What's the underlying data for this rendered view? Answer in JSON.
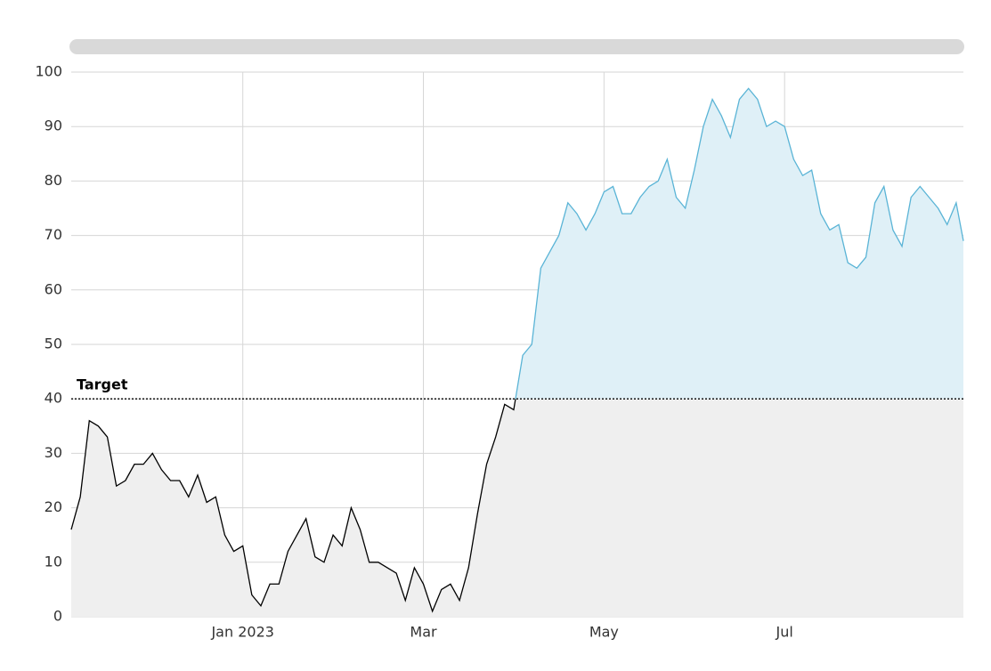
{
  "chart_data": {
    "type": "line",
    "x": [
      -0.9,
      -0.8,
      -0.7,
      -0.6,
      -0.5,
      -0.4,
      -0.3,
      -0.2,
      -0.1,
      0.0,
      0.1,
      0.2,
      0.3,
      0.4,
      0.5,
      0.6,
      0.7,
      0.8,
      0.9,
      1.0,
      1.1,
      1.2,
      1.3,
      1.4,
      1.5,
      1.6,
      1.7,
      1.8,
      1.9,
      2.0,
      2.1,
      2.2,
      2.3,
      2.4,
      2.5,
      2.6,
      2.7,
      2.8,
      2.9,
      3.0,
      3.1,
      3.2,
      3.3,
      3.4,
      3.5,
      3.6,
      3.7,
      3.8,
      3.9,
      4.0,
      4.1,
      4.2,
      4.3,
      4.4,
      4.5,
      4.6,
      4.7,
      4.8,
      4.9,
      5.0,
      5.1,
      5.2,
      5.3,
      5.4,
      5.5,
      5.6,
      5.7,
      5.8,
      5.9,
      6.0,
      6.1,
      6.2,
      6.3,
      6.4,
      6.5,
      6.6,
      6.7,
      6.8,
      6.9,
      7.0,
      7.1,
      7.2,
      7.3,
      7.4,
      7.5,
      7.6,
      7.7,
      7.8,
      7.9,
      8.0,
      8.1,
      8.2,
      8.3,
      8.4,
      8.5,
      8.6,
      8.7,
      8.8,
      8.9,
      8.98
    ],
    "values": [
      16,
      22,
      36,
      35,
      33,
      24,
      25,
      28,
      28,
      30,
      27,
      25,
      25,
      22,
      26,
      21,
      22,
      15,
      12,
      13,
      4,
      2,
      6,
      6,
      12,
      15,
      18,
      11,
      10,
      15,
      13,
      20,
      16,
      10,
      10,
      9,
      8,
      3,
      9,
      6,
      1,
      5,
      6,
      3,
      9,
      19,
      28,
      33,
      39,
      38,
      48,
      50,
      64,
      67,
      70,
      76,
      74,
      71,
      74,
      78,
      79,
      74,
      74,
      77,
      79,
      80,
      84,
      77,
      75,
      82,
      90,
      95,
      92,
      88,
      95,
      97,
      95,
      90,
      91,
      90,
      84,
      81,
      82,
      74,
      71,
      72,
      65,
      64,
      66,
      76,
      79,
      71,
      68,
      77,
      79,
      77,
      75,
      72,
      76,
      69
    ],
    "color_above": "#5ab4d6",
    "color_below": "#000000",
    "fill_above": "#dff0f7",
    "fill_below": "#efefef",
    "threshold": {
      "value": 40,
      "label": "Target"
    },
    "xlim": [
      -0.9,
      8.98
    ],
    "xticks": [
      {
        "value": 1,
        "label": "Jan 2023"
      },
      {
        "value": 3,
        "label": "Mar"
      },
      {
        "value": 5,
        "label": "May"
      },
      {
        "value": 7,
        "label": "Jul"
      }
    ],
    "ylim": [
      0,
      100
    ],
    "yticks": [
      0,
      10,
      20,
      30,
      40,
      50,
      60,
      70,
      80,
      90,
      100
    ],
    "grid": true
  }
}
